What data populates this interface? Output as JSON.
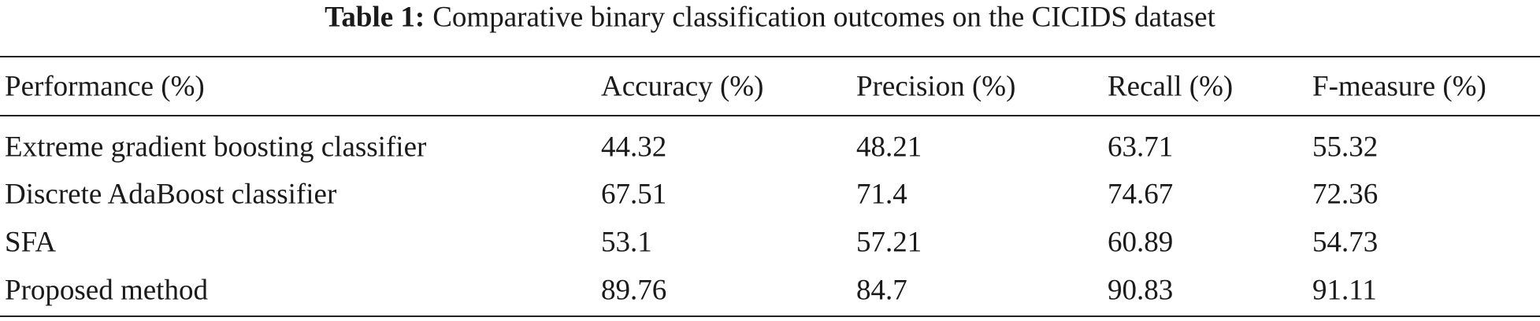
{
  "caption": {
    "label": "Table 1:",
    "text": "Comparative binary classification outcomes on the CICIDS dataset"
  },
  "table": {
    "header": [
      "Performance (%)",
      "Accuracy (%)",
      "Precision (%)",
      "Recall (%)",
      "F-measure (%)"
    ],
    "rows": [
      [
        "Extreme gradient boosting classifier",
        44.32,
        48.21,
        63.71,
        55.32
      ],
      [
        "Discrete AdaBoost classifier",
        67.51,
        71.4,
        74.67,
        72.36
      ],
      [
        "SFA",
        53.1,
        57.21,
        60.89,
        54.73
      ],
      [
        "Proposed method",
        89.76,
        84.7,
        90.83,
        91.11
      ]
    ]
  }
}
